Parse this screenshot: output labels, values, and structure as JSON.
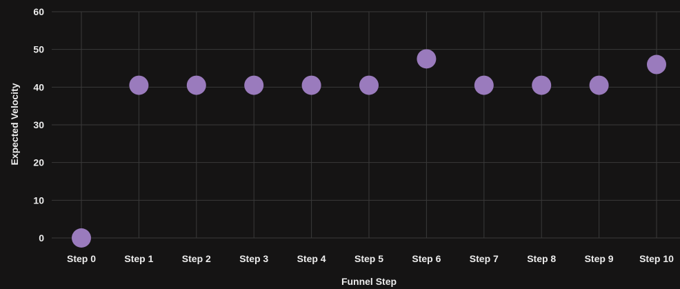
{
  "chart_data": {
    "type": "scatter",
    "xlabel": "Funnel Step",
    "ylabel": "Expected Velocity",
    "categories": [
      "Step 0",
      "Step 1",
      "Step 2",
      "Step 3",
      "Step 4",
      "Step 5",
      "Step 6",
      "Step 7",
      "Step 8",
      "Step 9",
      "Step 10"
    ],
    "values": [
      0,
      40.5,
      40.5,
      40.5,
      40.5,
      40.5,
      47.5,
      40.5,
      40.5,
      40.5,
      46
    ],
    "ylim": [
      0,
      60
    ],
    "yticks": [
      0,
      10,
      20,
      30,
      40,
      50,
      60
    ],
    "grid": true,
    "colors": {
      "background": "#151414",
      "point": "#9a7bbd",
      "grid": "#3a3a3a",
      "text": "#ececec"
    }
  }
}
